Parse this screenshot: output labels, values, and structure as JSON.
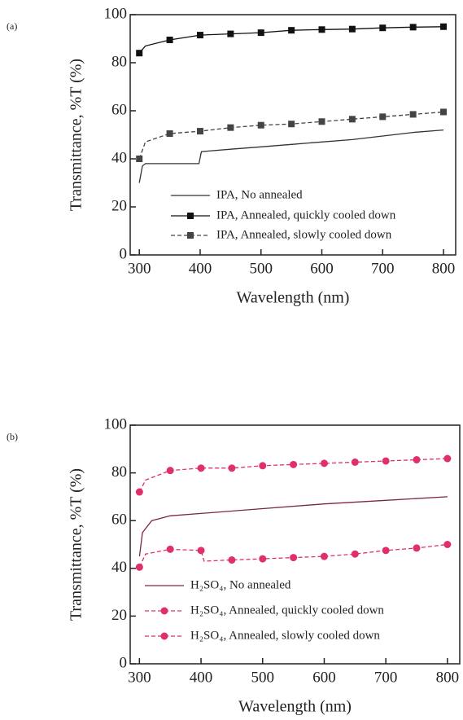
{
  "chart_data": [
    {
      "type": "line",
      "panel_label": "(a)",
      "xlabel": "Wavelength (nm)",
      "ylabel": "Transmittance, %T (%)",
      "xlim": [
        285,
        820
      ],
      "ylim": [
        0,
        100
      ],
      "xticks": [
        300,
        400,
        500,
        600,
        700,
        800
      ],
      "yticks": [
        0,
        20,
        40,
        60,
        80,
        100
      ],
      "series": [
        {
          "name": "IPA, No annealed",
          "color": "#333333",
          "dash": false,
          "marker": null,
          "x": [
            300,
            305,
            310,
            350,
            398,
            402,
            450,
            500,
            550,
            600,
            650,
            700,
            750,
            800
          ],
          "values": [
            30,
            37,
            38,
            38,
            38,
            43,
            44,
            45,
            46,
            47,
            48,
            49.5,
            51,
            52
          ]
        },
        {
          "name": "IPA, Annealed, quickly cooled down",
          "color": "#111111",
          "dash": false,
          "marker": "square",
          "x": [
            300,
            310,
            350,
            400,
            450,
            500,
            550,
            600,
            650,
            700,
            750,
            800
          ],
          "values": [
            84,
            87,
            89.5,
            91.5,
            92,
            92.5,
            93.5,
            93.8,
            94,
            94.5,
            94.8,
            95
          ]
        },
        {
          "name": "IPA, Annealed, slowly cooled down",
          "color": "#444444",
          "dash": true,
          "marker": "square",
          "x": [
            300,
            310,
            350,
            400,
            450,
            500,
            550,
            600,
            650,
            700,
            750,
            800
          ],
          "values": [
            40,
            47,
            50.5,
            51.5,
            53,
            54,
            54.5,
            55.5,
            56.5,
            57.5,
            58.5,
            59.5
          ]
        }
      ]
    },
    {
      "type": "line",
      "panel_label": "(b)",
      "xlabel": "Wavelength (nm)",
      "ylabel": "Transmittance, %T (%)",
      "xlim": [
        285,
        820
      ],
      "ylim": [
        0,
        100
      ],
      "xticks": [
        300,
        400,
        500,
        600,
        700,
        800
      ],
      "yticks": [
        0,
        20,
        40,
        60,
        80,
        100
      ],
      "series": [
        {
          "name": "H₂SO₄, No annealed",
          "color": "#7a2a3a",
          "dash": false,
          "marker": null,
          "x": [
            300,
            305,
            320,
            350,
            400,
            500,
            600,
            700,
            800
          ],
          "values": [
            45,
            55,
            60,
            62,
            63,
            65,
            67,
            68.5,
            70
          ]
        },
        {
          "name": "H₂SO₄, Annealed, quickly cooled down",
          "color": "#e0306a",
          "dash": true,
          "marker": "circle",
          "x": [
            300,
            310,
            350,
            400,
            450,
            500,
            550,
            600,
            650,
            700,
            750,
            800
          ],
          "values": [
            72,
            77,
            81,
            82,
            82,
            83,
            83.5,
            84,
            84.5,
            85,
            85.5,
            86
          ]
        },
        {
          "name": "H₂SO₄, Annealed, slowly cooled down",
          "color": "#e0306a",
          "dash": true,
          "marker": "circle",
          "x": [
            300,
            310,
            350,
            400,
            405,
            450,
            500,
            550,
            600,
            650,
            700,
            750,
            800
          ],
          "values": [
            40.5,
            46,
            48,
            47.5,
            43,
            43.5,
            44,
            44.5,
            45,
            46,
            47.5,
            48.5,
            50
          ]
        }
      ]
    }
  ]
}
